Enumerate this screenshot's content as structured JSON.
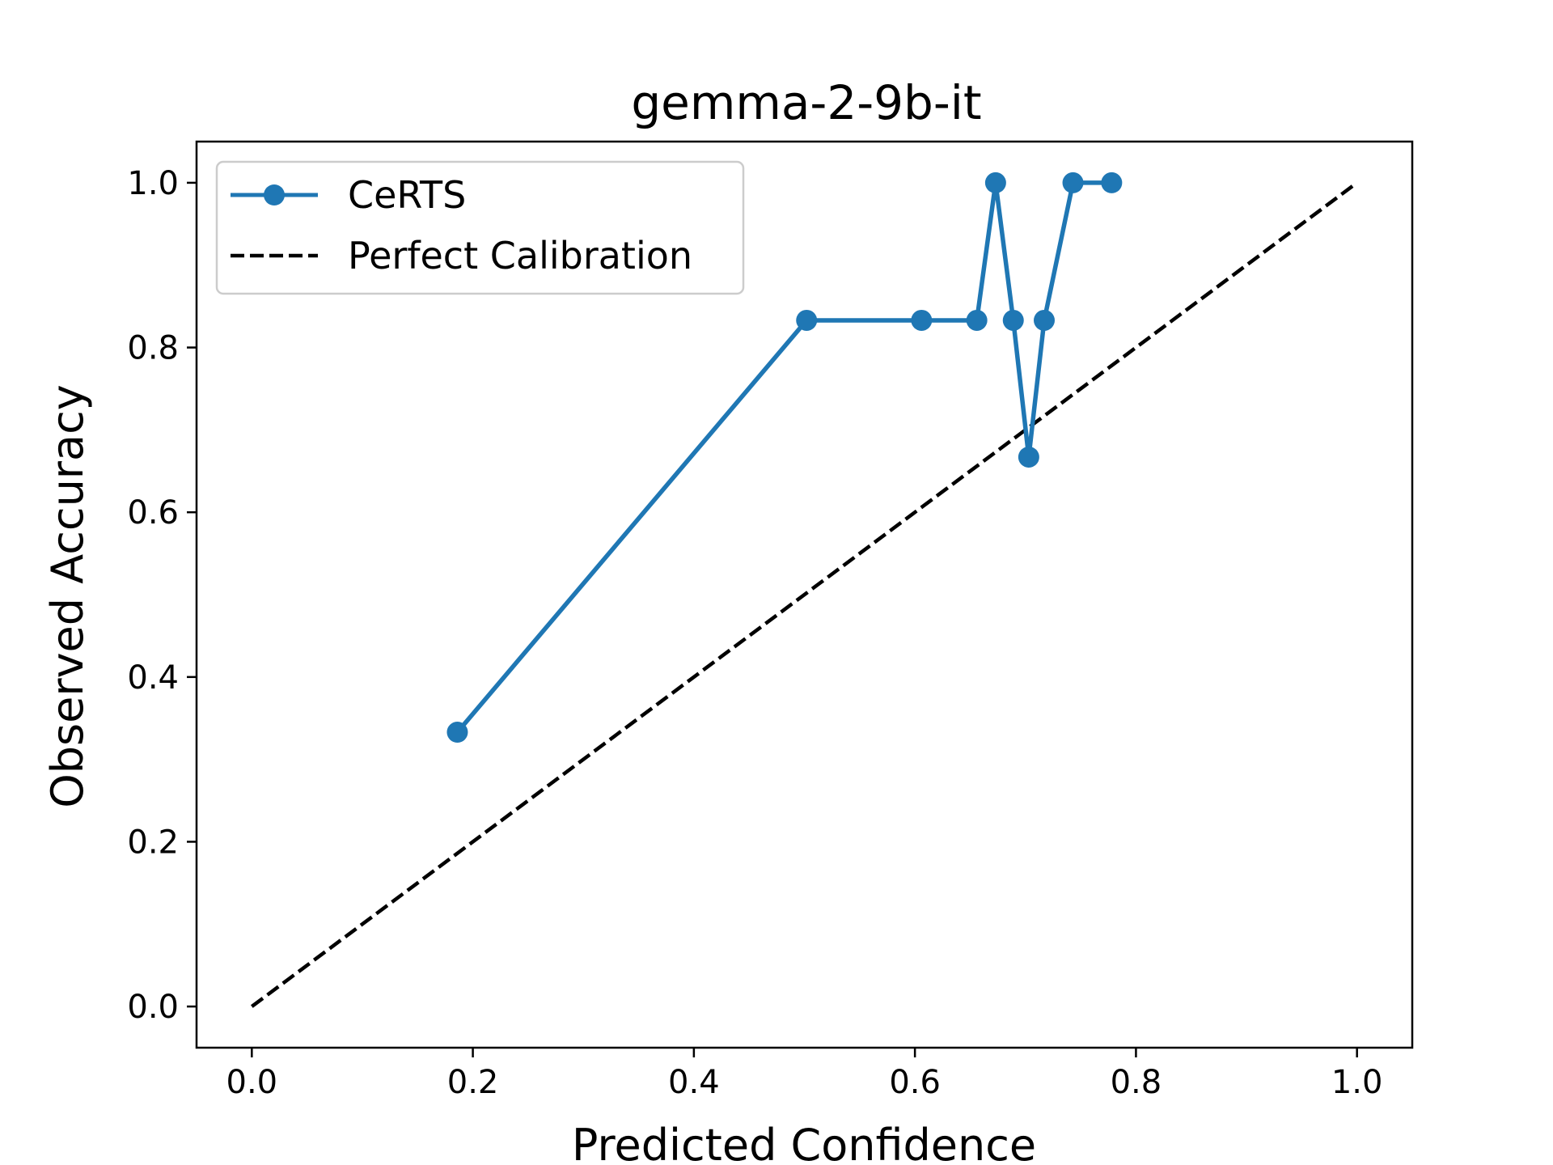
{
  "chart_data": {
    "type": "line",
    "title": "gemma-2-9b-it",
    "xlabel": "Predicted Confidence",
    "ylabel": "Observed Accuracy",
    "xlim": [
      -0.05,
      1.05
    ],
    "ylim": [
      -0.05,
      1.05
    ],
    "xticks": [
      0.0,
      0.2,
      0.4,
      0.6,
      0.8,
      1.0
    ],
    "yticks": [
      0.0,
      0.2,
      0.4,
      0.6,
      0.8,
      1.0
    ],
    "xtick_labels": [
      "0.0",
      "0.2",
      "0.4",
      "0.6",
      "0.8",
      "1.0"
    ],
    "ytick_labels": [
      "0.0",
      "0.2",
      "0.4",
      "0.6",
      "0.8",
      "1.0"
    ],
    "grid": false,
    "legend_position": "top-left",
    "series": [
      {
        "name": "CeRTS",
        "style": "solid line with circle markers",
        "color": "#1f77b4",
        "x": [
          0.186,
          0.502,
          0.606,
          0.656,
          0.673,
          0.689,
          0.703,
          0.717,
          0.743,
          0.778
        ],
        "y": [
          0.333,
          0.833,
          0.833,
          0.833,
          1.0,
          0.833,
          0.667,
          0.833,
          1.0,
          1.0
        ]
      },
      {
        "name": "Perfect Calibration",
        "style": "dashed line",
        "color": "#000000",
        "x": [
          0.0,
          1.0
        ],
        "y": [
          0.0,
          1.0
        ]
      }
    ]
  }
}
